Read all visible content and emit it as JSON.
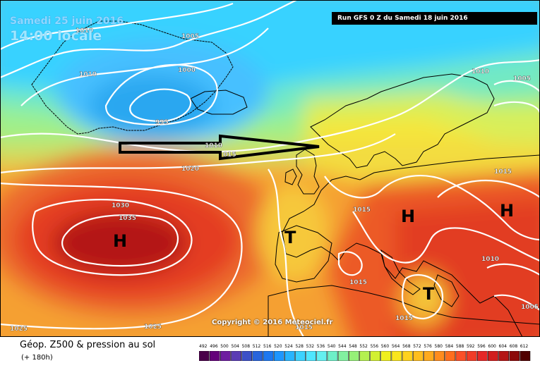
{
  "header": {
    "date": "Samedi 25 juin 2016",
    "time": "14:00 locale",
    "run": "Run GFS 0 Z du Samedi 18 juin 2016"
  },
  "map": {
    "pressure_labels": [
      "1010",
      "1005",
      "1010",
      "1000",
      "995",
      "1010",
      "1005",
      "1010",
      "015",
      "1020",
      "1015",
      "1030",
      "1035",
      "1015",
      "1015",
      "1010",
      "1015",
      "1015",
      "1005",
      "1025",
      "1025"
    ],
    "systems": [
      "H",
      "T",
      "H",
      "H",
      "T"
    ],
    "colors": {
      "arrow": "#000000",
      "isobar": "#ffffff",
      "coast": "#000000"
    }
  },
  "copyright": "Copyright © 2016 Meteociel.fr",
  "footer": {
    "title": "Géop. Z500 & pression au sol",
    "forecast": "(+ 180h)"
  },
  "legend": {
    "values": [
      "492",
      "496",
      "500",
      "504",
      "508",
      "512",
      "516",
      "520",
      "524",
      "528",
      "532",
      "536",
      "540",
      "544",
      "548",
      "552",
      "556",
      "560",
      "564",
      "568",
      "572",
      "576",
      "580",
      "584",
      "588",
      "592",
      "596",
      "600",
      "604",
      "608",
      "612"
    ],
    "colors": [
      "#4a004a",
      "#64007a",
      "#6e1ea0",
      "#5a3cb4",
      "#3c50c8",
      "#2864dc",
      "#1e78f0",
      "#1e96ff",
      "#28b4ff",
      "#3cd2ff",
      "#50e6ff",
      "#64f0f0",
      "#6ef0c8",
      "#82f0a0",
      "#96f078",
      "#b4f050",
      "#d2f032",
      "#f0f01e",
      "#fae61e",
      "#ffd21e",
      "#ffbe1e",
      "#ffaa1e",
      "#ff8c1e",
      "#ff6e1e",
      "#fa5028",
      "#f03c28",
      "#e62828",
      "#d21e1e",
      "#b41414",
      "#8c0a0a",
      "#500000"
    ]
  }
}
